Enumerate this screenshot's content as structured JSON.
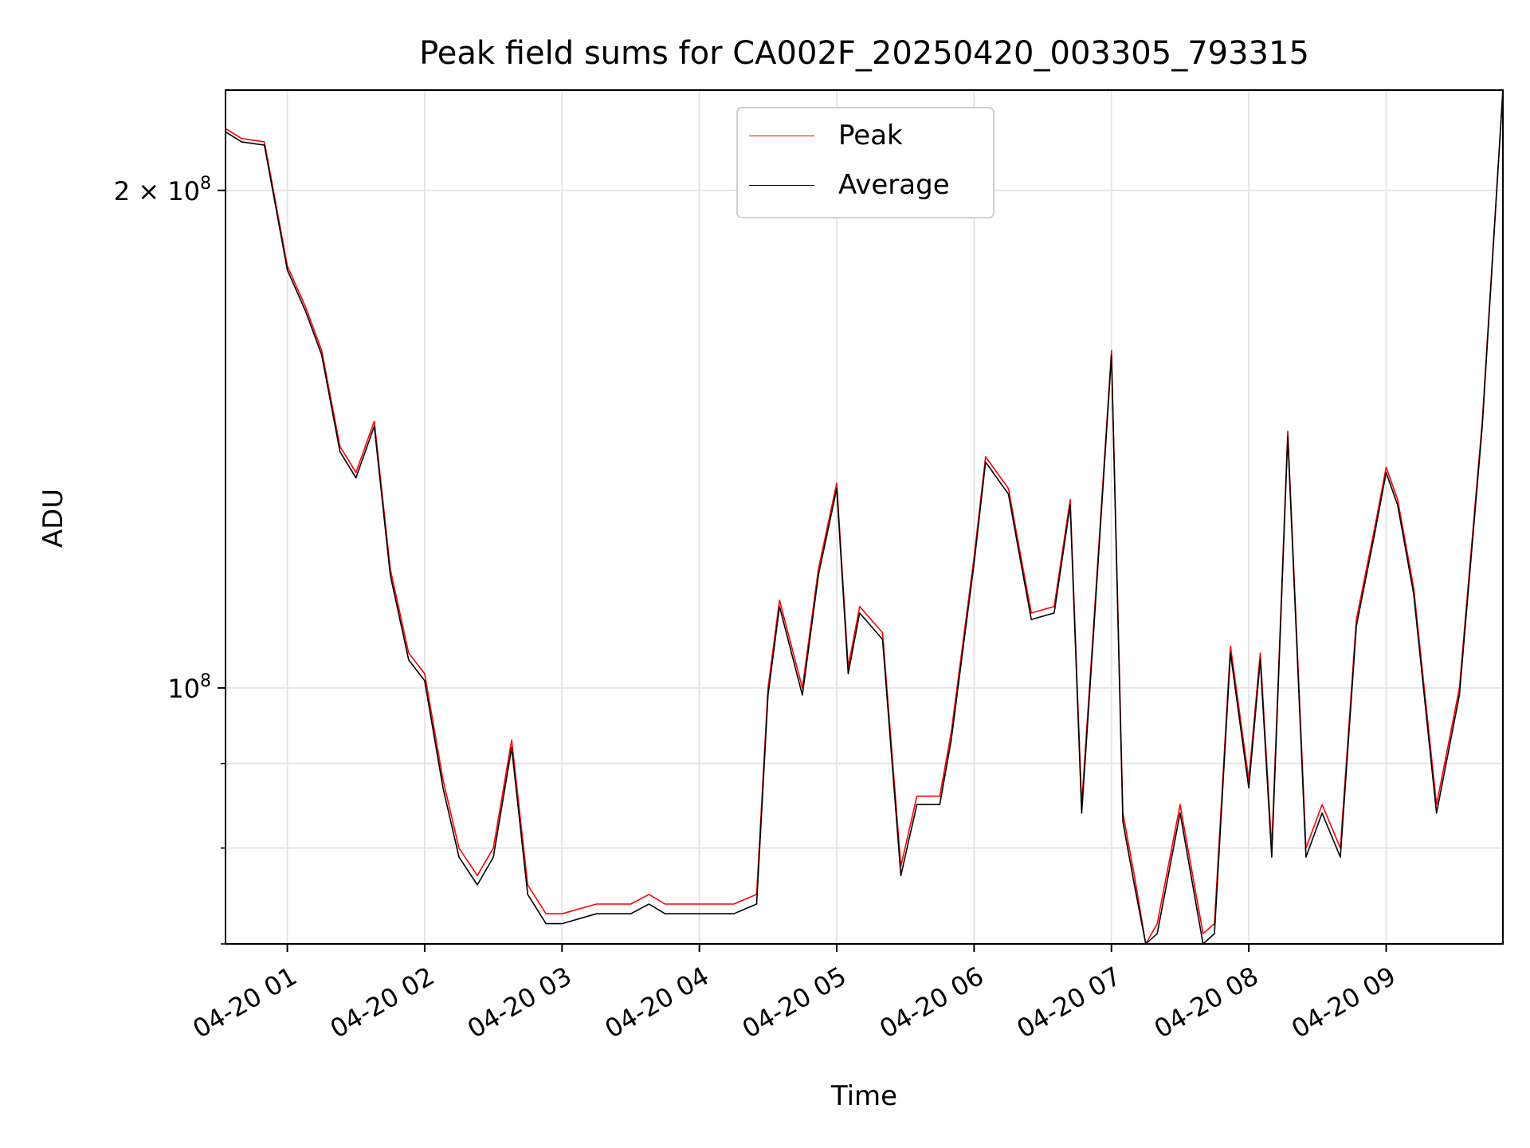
{
  "chart_data": {
    "type": "line",
    "title": "Peak field sums for CA002F_20250420_003305_793315",
    "xlabel": "Time",
    "ylabel": "ADU",
    "y_scale": "log",
    "ylim": [
      70000000.0,
      230000000.0
    ],
    "xlim": [
      "2025-04-20 00:33",
      "2025-04-20 09:51"
    ],
    "x_ticks": [
      "04-20 01",
      "04-20 02",
      "04-20 03",
      "04-20 04",
      "04-20 05",
      "04-20 06",
      "04-20 07",
      "04-20 08",
      "04-20 09"
    ],
    "y_ticks": [
      {
        "value": 100000000,
        "base": "10",
        "exp": "8",
        "coef": ""
      },
      {
        "value": 200000000,
        "base": "10",
        "exp": "8",
        "coef": "2 × "
      }
    ],
    "grid": true,
    "legend_position": "upper center",
    "colors": {
      "peak": "#ff0000",
      "average": "#000000",
      "grid": "#e6e6e6"
    },
    "x": [
      "00:33",
      "00:40",
      "00:50",
      "01:00",
      "01:08",
      "01:15",
      "01:23",
      "01:30",
      "01:38",
      "01:45",
      "01:53",
      "02:00",
      "02:08",
      "02:15",
      "02:23",
      "02:30",
      "02:38",
      "02:45",
      "02:53",
      "03:00",
      "03:15",
      "03:30",
      "03:38",
      "03:45",
      "04:00",
      "04:15",
      "04:25",
      "04:30",
      "04:35",
      "04:45",
      "04:52",
      "05:00",
      "05:05",
      "05:10",
      "05:20",
      "05:28",
      "05:35",
      "05:45",
      "05:50",
      "06:00",
      "06:05",
      "06:15",
      "06:20",
      "06:25",
      "06:35",
      "06:42",
      "06:47",
      "06:52",
      "07:00",
      "07:05",
      "07:10",
      "07:15",
      "07:20",
      "07:30",
      "07:40",
      "07:45",
      "07:52",
      "08:00",
      "08:05",
      "08:10",
      "08:17",
      "08:25",
      "08:32",
      "08:40",
      "08:47",
      "08:55",
      "09:00",
      "09:05",
      "09:12",
      "09:22",
      "09:32",
      "09:42",
      "09:51"
    ],
    "series": [
      {
        "name": "Peak",
        "values": [
          218000000.0,
          215000000.0,
          214000000.0,
          180000000.0,
          170000000.0,
          160000000.0,
          140000000.0,
          135000000.0,
          145000000.0,
          118000000.0,
          105000000.0,
          102000000.0,
          88000000.0,
          80000000.0,
          77000000.0,
          80000000.0,
          93000000.0,
          76000000.0,
          73000000.0,
          73000000.0,
          74000000.0,
          74000000.0,
          75000000.0,
          74000000.0,
          74000000.0,
          74000000.0,
          75000000.0,
          100000000.0,
          113000000.0,
          100000000.0,
          118000000.0,
          133000000.0,
          103000000.0,
          112000000.0,
          108000000.0,
          78000000.0,
          86000000.0,
          86000000.0,
          94000000.0,
          120000000.0,
          138000000.0,
          132000000.0,
          121000000.0,
          111000000.0,
          112000000.0,
          130000000.0,
          85000000.0,
          108000000.0,
          160000000.0,
          84000000.0,
          77000000.0,
          70000000.0,
          72000000.0,
          85000000.0,
          71000000.0,
          72000000.0,
          106000000.0,
          88000000.0,
          105000000.0,
          80000000.0,
          143000000.0,
          80000000.0,
          85000000.0,
          80000000.0,
          110000000.0,
          125000000.0,
          136000000.0,
          130000000.0,
          115000000.0,
          85000000.0,
          100000000.0,
          145000000.0,
          230000000.0
        ]
      },
      {
        "name": "Average",
        "values": [
          217000000.0,
          214000000.0,
          213000000.0,
          179000000.0,
          169000000.0,
          159000000.0,
          139000000.0,
          134000000.0,
          144000000.0,
          117000000.0,
          104000000.0,
          101000000.0,
          87000000.0,
          79000000.0,
          76000000.0,
          79000000.0,
          92000000.0,
          75000000.0,
          72000000.0,
          72000000.0,
          73000000.0,
          73000000.0,
          74000000.0,
          73000000.0,
          73000000.0,
          73000000.0,
          74000000.0,
          99000000.0,
          112000000.0,
          99000000.0,
          117000000.0,
          132000000.0,
          102000000.0,
          111000000.0,
          107000000.0,
          77000000.0,
          85000000.0,
          85000000.0,
          93000000.0,
          119000000.0,
          137000000.0,
          131000000.0,
          120000000.0,
          110000000.0,
          111000000.0,
          129000000.0,
          84000000.0,
          107000000.0,
          159000000.0,
          83000000.0,
          76000000.0,
          69500000.0,
          71000000.0,
          84000000.0,
          70000000.0,
          71000000.0,
          105000000.0,
          87000000.0,
          104000000.0,
          79000000.0,
          142000000.0,
          79000000.0,
          84000000.0,
          79000000.0,
          109000000.0,
          124000000.0,
          135000000.0,
          129000000.0,
          114000000.0,
          84000000.0,
          99000000.0,
          144000000.0,
          230000000.0
        ]
      }
    ]
  }
}
